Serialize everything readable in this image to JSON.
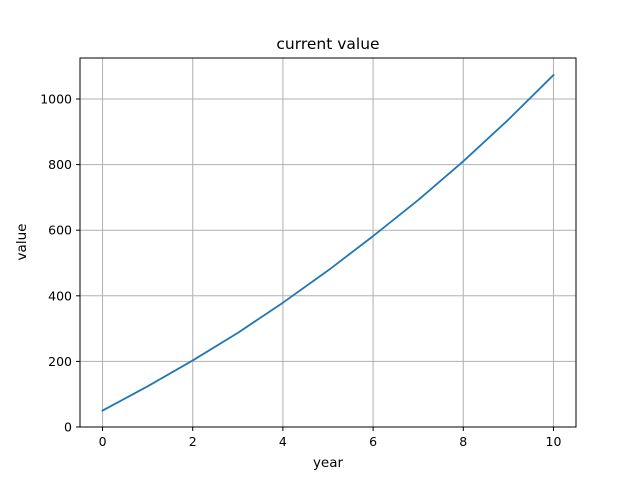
{
  "chart_data": {
    "type": "line",
    "title": "current value",
    "xlabel": "year",
    "ylabel": "value",
    "xlim": [
      -0.5,
      10.5
    ],
    "ylim": [
      0,
      1125
    ],
    "xticks": [
      0,
      2,
      4,
      6,
      8,
      10
    ],
    "yticks": [
      0,
      200,
      400,
      600,
      800,
      1000
    ],
    "grid": true,
    "series_color": "#1f77b4",
    "x": [
      0,
      1,
      2,
      3,
      4,
      5,
      6,
      7,
      8,
      9,
      10
    ],
    "y": [
      50,
      124,
      203,
      287,
      379,
      477,
      582,
      692,
      810,
      937,
      1073
    ]
  }
}
